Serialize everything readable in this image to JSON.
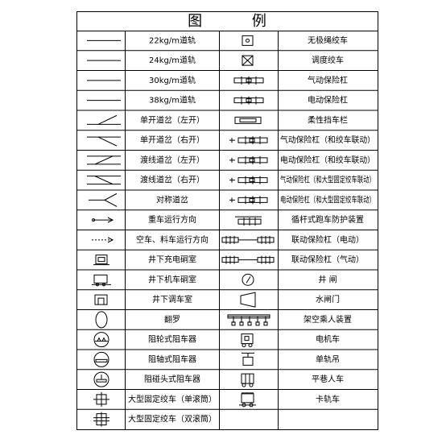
{
  "title": "图 例",
  "left_labels": [
    "22kg/m道轨",
    "24kg/m道轨",
    "30kg/m道轨",
    "38kg/m道轨",
    "单开道岔（左开）",
    "单开道岔（右开）",
    "渡线道岔（左开）",
    "渡线道岔（右开）",
    "对称道岔",
    "重车运行方向",
    "空车、料车运行方向",
    "井下充电硐室",
    "井下机车硐室",
    "井下调车室",
    "翻罗",
    "阻轮式阻车器",
    "阻轴式阻车器",
    "阻碰头式阻车器",
    "大型固定绞车（单滚筒）",
    "大型固定绞车（双滚筒）"
  ],
  "right_labels": [
    "无极绳绞车",
    "调度绞车",
    "气动保险杠",
    "电动保险杠",
    "柔性挡车栏",
    "气动保险杠（和绞车联动）",
    "电动保险杠（和绞车联动）",
    "气动保险杠（和大型固定绞车联动）",
    "电动保险杠（和大型固定绞车联动）",
    "循杆式跑车防护装置",
    "联动保险杠（电动）",
    "联动保险杠（气动）",
    "井 闸",
    "水闸门",
    "架空乘人装置",
    "电机车",
    "单轨吊",
    "平巷人车",
    "卡轨车"
  ]
}
